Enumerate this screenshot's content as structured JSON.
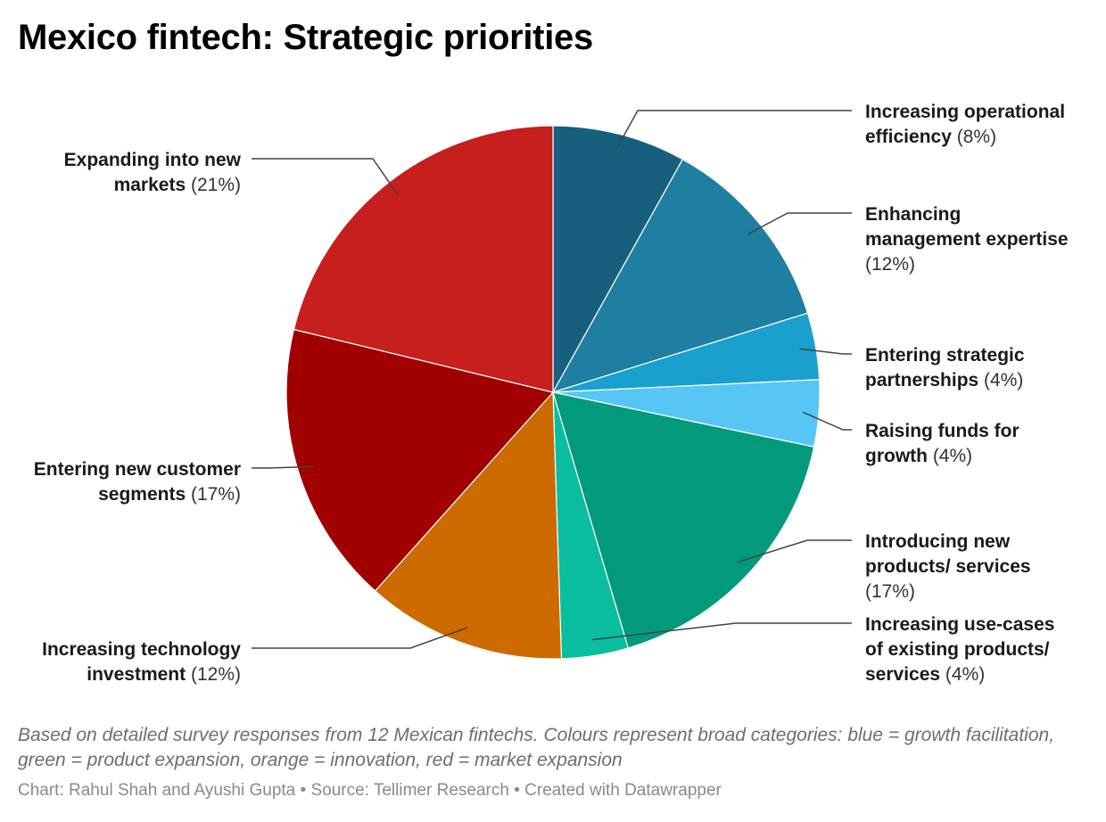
{
  "title": "Mexico fintech: Strategic priorities",
  "chart_data": {
    "type": "pie",
    "title": "Mexico fintech: Strategic priorities",
    "unit": "%",
    "slices": [
      {
        "label": "Increasing operational efficiency",
        "lines": [
          "Increasing operational",
          "efficiency"
        ],
        "value": 8,
        "value_label": "(8%)",
        "color": "#17607d"
      },
      {
        "label": "Enhancing management expertise",
        "lines": [
          "Enhancing",
          "management expertise"
        ],
        "value": 12,
        "value_label": "(12%)",
        "color": "#1e7fa2"
      },
      {
        "label": "Entering strategic partnerships",
        "lines": [
          "Entering strategic",
          "partnerships"
        ],
        "value": 4,
        "value_label": "(4%)",
        "color": "#1aa0cf"
      },
      {
        "label": "Raising funds for growth",
        "lines": [
          "Raising funds for",
          "growth"
        ],
        "value": 4,
        "value_label": "(4%)",
        "color": "#58c6f4"
      },
      {
        "label": "Introducing new products/ services",
        "lines": [
          "Introducing new",
          "products/ services"
        ],
        "value": 17,
        "value_label": "(17%)",
        "color": "#029a7c"
      },
      {
        "label": "Increasing use-cases of existing products/ services",
        "lines": [
          "Increasing use-cases",
          "of existing products/",
          "services"
        ],
        "value": 4,
        "value_label": "(4%)",
        "color": "#0abd9f"
      },
      {
        "label": "Increasing technology investment",
        "lines": [
          "Increasing technology",
          "investment"
        ],
        "value": 12,
        "value_label": "(12%)",
        "color": "#cd6a00"
      },
      {
        "label": "Entering new customer segments",
        "lines": [
          "Entering new customer",
          "segments"
        ],
        "value": 17,
        "value_label": "(17%)",
        "color": "#a10000"
      },
      {
        "label": "Expanding into new markets",
        "lines": [
          "Expanding into new",
          "markets"
        ],
        "value": 21,
        "value_label": "(21%)",
        "color": "#c71e1e"
      }
    ]
  },
  "notes": "Based on detailed survey responses from 12 Mexican fintechs. Colours represent broad categories: blue = growth facilitation, green = product expansion, orange = innovation, red = market expansion",
  "credits": "Chart: Rahul Shah and Ayushi Gupta • Source: Tellimer Research • Created with Datawrapper"
}
